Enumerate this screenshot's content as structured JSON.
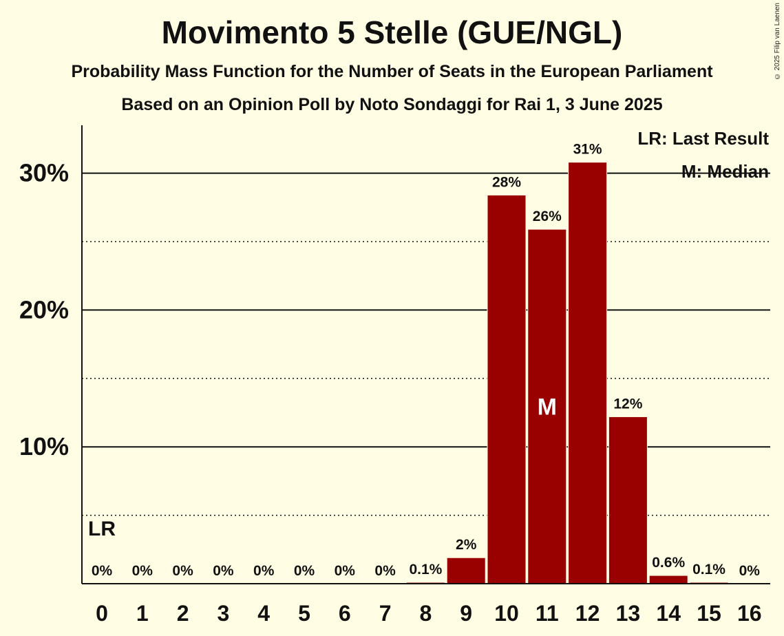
{
  "header": {
    "title": "Movimento 5 Stelle (GUE/NGL)",
    "subtitle": "Probability Mass Function for the Number of Seats in the European Parliament",
    "source": "Based on an Opinion Poll by Noto Sondaggi for Rai 1, 3 June 2025",
    "copyright": "© 2025 Filip van Laenen"
  },
  "legend": {
    "last_result": "LR: Last Result",
    "median": "M: Median"
  },
  "colors": {
    "background": "#fffde3",
    "bar": "#990000",
    "text": "#111111"
  },
  "chart_data": {
    "type": "bar",
    "categories": [
      "0",
      "1",
      "2",
      "3",
      "4",
      "5",
      "6",
      "7",
      "8",
      "9",
      "10",
      "11",
      "12",
      "13",
      "14",
      "15",
      "16"
    ],
    "values": [
      0,
      0,
      0,
      0,
      0,
      0,
      0,
      0,
      0.1,
      1.9,
      28.4,
      25.9,
      30.8,
      12.2,
      0.6,
      0.1,
      0
    ],
    "labels": [
      "0%",
      "0%",
      "0%",
      "0%",
      "0%",
      "0%",
      "0%",
      "0%",
      "0.1%",
      "2%",
      "28%",
      "26%",
      "31%",
      "12%",
      "0.6%",
      "0.1%",
      "0%"
    ],
    "ylim": [
      0,
      33.5
    ],
    "y_ticks": [
      {
        "value": 10,
        "label": "10%"
      },
      {
        "value": 20,
        "label": "20%"
      },
      {
        "value": 30,
        "label": "30%"
      }
    ],
    "y_minor_gridlines": [
      5,
      15,
      25
    ],
    "last_result_index": 0,
    "last_result_label": "LR",
    "median_index": 11,
    "median_label": "M",
    "legend_position": "top-right",
    "grid": true
  }
}
